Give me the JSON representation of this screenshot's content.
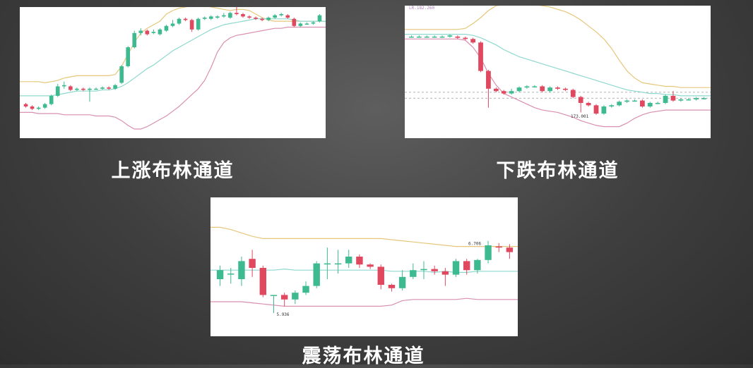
{
  "colors": {
    "up": "#3dba8f",
    "down": "#e0485f",
    "upper_band": "#e6c77a",
    "middle_band": "#8fd8cf",
    "lower_band": "#d98fb0",
    "price_label": "#333333"
  },
  "chart_data": [
    {
      "type": "candlestick",
      "caption": "上涨布林通道",
      "ylim": [
        0,
        100
      ],
      "candles": [
        {
          "o": 24,
          "c": 22,
          "h": 25,
          "l": 21
        },
        {
          "o": 22,
          "c": 20,
          "h": 23,
          "l": 19
        },
        {
          "o": 20,
          "c": 21,
          "h": 22,
          "l": 19
        },
        {
          "o": 21,
          "c": 24,
          "h": 25,
          "l": 20
        },
        {
          "o": 24,
          "c": 31,
          "h": 32,
          "l": 23
        },
        {
          "o": 31,
          "c": 39,
          "h": 41,
          "l": 30
        },
        {
          "o": 39,
          "c": 40,
          "h": 43,
          "l": 37
        },
        {
          "o": 39,
          "c": 36,
          "h": 40,
          "l": 35
        },
        {
          "o": 36,
          "c": 37,
          "h": 38,
          "l": 35
        },
        {
          "o": 37,
          "c": 36,
          "h": 38,
          "l": 35
        },
        {
          "o": 36,
          "c": 37,
          "h": 38,
          "l": 26
        },
        {
          "o": 37,
          "c": 37,
          "h": 38,
          "l": 36
        },
        {
          "o": 37,
          "c": 38,
          "h": 39,
          "l": 36
        },
        {
          "o": 38,
          "c": 37,
          "h": 39,
          "l": 36
        },
        {
          "o": 37,
          "c": 40,
          "h": 41,
          "l": 36
        },
        {
          "o": 42,
          "c": 56,
          "h": 57,
          "l": 41
        },
        {
          "o": 56,
          "c": 72,
          "h": 73,
          "l": 55
        },
        {
          "o": 72,
          "c": 84,
          "h": 86,
          "l": 71
        },
        {
          "o": 84,
          "c": 86,
          "h": 88,
          "l": 82
        },
        {
          "o": 86,
          "c": 83,
          "h": 87,
          "l": 82
        },
        {
          "o": 84,
          "c": 85,
          "h": 87,
          "l": 83
        },
        {
          "o": 83,
          "c": 87,
          "h": 88,
          "l": 82
        },
        {
          "o": 86,
          "c": 90,
          "h": 91,
          "l": 85
        },
        {
          "o": 90,
          "c": 92,
          "h": 95,
          "l": 89
        },
        {
          "o": 92,
          "c": 96,
          "h": 97,
          "l": 91
        },
        {
          "o": 96,
          "c": 95,
          "h": 97,
          "l": 94
        },
        {
          "o": 95,
          "c": 87,
          "h": 96,
          "l": 85
        },
        {
          "o": 87,
          "c": 96,
          "h": 97,
          "l": 86
        },
        {
          "o": 96,
          "c": 97,
          "h": 98,
          "l": 95
        },
        {
          "o": 96,
          "c": 98,
          "h": 99,
          "l": 95
        },
        {
          "o": 97,
          "c": 98,
          "h": 99,
          "l": 96
        },
        {
          "o": 98,
          "c": 99,
          "h": 101,
          "l": 97
        },
        {
          "o": 97,
          "c": 101,
          "h": 102,
          "l": 96
        },
        {
          "o": 101,
          "c": 100,
          "h": 106,
          "l": 99
        },
        {
          "o": 100,
          "c": 98,
          "h": 101,
          "l": 97
        },
        {
          "o": 98,
          "c": 97,
          "h": 99,
          "l": 96
        },
        {
          "o": 97,
          "c": 96,
          "h": 98,
          "l": 95
        },
        {
          "o": 96,
          "c": 95,
          "h": 97,
          "l": 94
        },
        {
          "o": 95,
          "c": 97,
          "h": 98,
          "l": 94
        },
        {
          "o": 97,
          "c": 99,
          "h": 100,
          "l": 96
        },
        {
          "o": 99,
          "c": 100,
          "h": 101,
          "l": 98
        },
        {
          "o": 99,
          "c": 97,
          "h": 100,
          "l": 96
        },
        {
          "o": 96,
          "c": 90,
          "h": 97,
          "l": 89
        },
        {
          "o": 90,
          "c": 92,
          "h": 93,
          "l": 89
        },
        {
          "o": 92,
          "c": 92,
          "h": 93,
          "l": 91
        },
        {
          "o": 92,
          "c": 93,
          "h": 94,
          "l": 91
        },
        {
          "o": 94,
          "c": 99,
          "h": 100,
          "l": 93
        }
      ],
      "upper": [
        43,
        43,
        43,
        42,
        43,
        44,
        46,
        47,
        48,
        48,
        48,
        48,
        48,
        48,
        49,
        56,
        66,
        76,
        84,
        88,
        91,
        94,
        100,
        103,
        105,
        106,
        107,
        107,
        107,
        106,
        105,
        104,
        103,
        104,
        104,
        103,
        100,
        97,
        95,
        94,
        94,
        94,
        94,
        94,
        94,
        94,
        94
      ],
      "middle": [
        31,
        31,
        31,
        31,
        31,
        32,
        33,
        34,
        35,
        35,
        35,
        35,
        36,
        36,
        37,
        39,
        42,
        46,
        50,
        54,
        57,
        61,
        65,
        69,
        72,
        75,
        78,
        81,
        84,
        87,
        89,
        91,
        92,
        93,
        94,
        95,
        96,
        96,
        96,
        96,
        96,
        96,
        95,
        94,
        94,
        94,
        94
      ],
      "lower": [
        17,
        17,
        16,
        16,
        16,
        16,
        15,
        15,
        15,
        15,
        15,
        14,
        14,
        14,
        13,
        10,
        6,
        3,
        3,
        5,
        8,
        11,
        14,
        18,
        22,
        27,
        32,
        37,
        44,
        55,
        68,
        76,
        80,
        82,
        83,
        84,
        85,
        86,
        87,
        88,
        88,
        89,
        89,
        89,
        89,
        89,
        89
      ]
    },
    {
      "type": "candlestick",
      "caption": "下跌布林通道",
      "ylim": [
        0,
        100
      ],
      "price_label": "173.001",
      "top_label": "LR.182.260",
      "ref_lines": [
        34,
        29
      ],
      "candles": [
        {
          "o": 81,
          "c": 81,
          "h": 82,
          "l": 80
        },
        {
          "o": 81,
          "c": 81,
          "h": 82,
          "l": 80
        },
        {
          "o": 81,
          "c": 81,
          "h": 82,
          "l": 80
        },
        {
          "o": 81,
          "c": 81,
          "h": 82,
          "l": 80
        },
        {
          "o": 81,
          "c": 81,
          "h": 82,
          "l": 80
        },
        {
          "o": 81,
          "c": 82,
          "h": 83,
          "l": 80
        },
        {
          "o": 81,
          "c": 80,
          "h": 82,
          "l": 79
        },
        {
          "o": 80,
          "c": 79,
          "h": 81,
          "l": 78
        },
        {
          "o": 79,
          "c": 76,
          "h": 80,
          "l": 75
        },
        {
          "o": 76,
          "c": 52,
          "h": 77,
          "l": 51
        },
        {
          "o": 52,
          "c": 37,
          "h": 53,
          "l": 21
        },
        {
          "o": 37,
          "c": 35,
          "h": 38,
          "l": 34
        },
        {
          "o": 35,
          "c": 33,
          "h": 36,
          "l": 32
        },
        {
          "o": 33,
          "c": 35,
          "h": 37,
          "l": 32
        },
        {
          "o": 35,
          "c": 38,
          "h": 39,
          "l": 34
        },
        {
          "o": 38,
          "c": 39,
          "h": 40,
          "l": 37
        },
        {
          "o": 39,
          "c": 39,
          "h": 40,
          "l": 38
        },
        {
          "o": 39,
          "c": 35,
          "h": 40,
          "l": 34
        },
        {
          "o": 35,
          "c": 38,
          "h": 39,
          "l": 34
        },
        {
          "o": 38,
          "c": 37,
          "h": 39,
          "l": 36
        },
        {
          "o": 37,
          "c": 36,
          "h": 38,
          "l": 35
        },
        {
          "o": 36,
          "c": 30,
          "h": 37,
          "l": 29
        },
        {
          "o": 30,
          "c": 25,
          "h": 31,
          "l": 17
        },
        {
          "o": 25,
          "c": 23,
          "h": 26,
          "l": 22
        },
        {
          "o": 23,
          "c": 16,
          "h": 24,
          "l": 15
        },
        {
          "o": 16,
          "c": 22,
          "h": 23,
          "l": 15
        },
        {
          "o": 22,
          "c": 23,
          "h": 24,
          "l": 21
        },
        {
          "o": 23,
          "c": 26,
          "h": 27,
          "l": 22
        },
        {
          "o": 26,
          "c": 27,
          "h": 28,
          "l": 25
        },
        {
          "o": 27,
          "c": 27,
          "h": 28,
          "l": 26
        },
        {
          "o": 27,
          "c": 22,
          "h": 28,
          "l": 21
        },
        {
          "o": 22,
          "c": 25,
          "h": 26,
          "l": 21
        },
        {
          "o": 25,
          "c": 25,
          "h": 26,
          "l": 24
        },
        {
          "o": 25,
          "c": 31,
          "h": 32,
          "l": 24
        },
        {
          "o": 31,
          "c": 27,
          "h": 35,
          "l": 26
        },
        {
          "o": 27,
          "c": 28,
          "h": 29,
          "l": 26
        },
        {
          "o": 28,
          "c": 28,
          "h": 29,
          "l": 27
        },
        {
          "o": 28,
          "c": 29,
          "h": 30,
          "l": 27
        },
        {
          "o": 29,
          "c": 29,
          "h": 30,
          "l": 28
        }
      ],
      "upper": [
        87,
        87,
        87,
        87,
        87,
        87,
        87,
        88,
        92,
        97,
        103,
        107,
        108,
        108,
        108,
        108,
        108,
        107,
        106,
        104,
        102,
        99,
        95,
        90,
        85,
        79,
        71,
        61,
        52,
        46,
        42,
        41,
        40,
        39,
        39,
        38,
        38,
        38,
        38
      ],
      "middle": [
        83,
        83,
        83,
        83,
        83,
        83,
        83,
        83,
        82,
        80,
        77,
        74,
        70,
        67,
        64,
        62,
        60,
        58,
        56,
        54,
        52,
        50,
        48,
        46,
        44,
        42,
        40,
        38,
        36,
        35,
        34,
        33,
        33,
        32,
        32,
        31,
        31,
        31,
        31
      ],
      "lower": [
        79,
        79,
        79,
        79,
        79,
        79,
        79,
        78,
        72,
        63,
        50,
        40,
        33,
        30,
        27,
        24,
        21,
        19,
        18,
        17,
        15,
        13,
        10,
        8,
        6,
        5,
        5,
        5,
        8,
        12,
        15,
        17,
        18,
        19,
        19,
        19,
        19,
        19,
        19
      ]
    },
    {
      "type": "candlestick",
      "caption": "震荡布林通道",
      "ylim": [
        0,
        100
      ],
      "price_label": "5.936",
      "high_label": "6.706",
      "candles": [
        {
          "o": 40,
          "c": 48,
          "h": 52,
          "l": 34
        },
        {
          "o": 45,
          "c": 45,
          "h": 50,
          "l": 36
        },
        {
          "o": 40,
          "c": 56,
          "h": 60,
          "l": 34
        },
        {
          "o": 58,
          "c": 50,
          "h": 66,
          "l": 42
        },
        {
          "o": 50,
          "c": 26,
          "h": 52,
          "l": 24
        },
        {
          "o": 26,
          "c": 26,
          "h": 26,
          "l": 10
        },
        {
          "o": 26,
          "c": 22,
          "h": 28,
          "l": 16
        },
        {
          "o": 22,
          "c": 28,
          "h": 30,
          "l": 18
        },
        {
          "o": 28,
          "c": 34,
          "h": 38,
          "l": 26
        },
        {
          "o": 34,
          "c": 54,
          "h": 56,
          "l": 32
        },
        {
          "o": 54,
          "c": 54,
          "h": 68,
          "l": 40
        },
        {
          "o": 54,
          "c": 54,
          "h": 66,
          "l": 45
        },
        {
          "o": 54,
          "c": 60,
          "h": 66,
          "l": 50
        },
        {
          "o": 60,
          "c": 53,
          "h": 62,
          "l": 50
        },
        {
          "o": 53,
          "c": 51,
          "h": 54,
          "l": 49
        },
        {
          "o": 51,
          "c": 35,
          "h": 53,
          "l": 31
        },
        {
          "o": 35,
          "c": 32,
          "h": 36,
          "l": 29
        },
        {
          "o": 32,
          "c": 42,
          "h": 48,
          "l": 30
        },
        {
          "o": 42,
          "c": 48,
          "h": 54,
          "l": 40
        },
        {
          "o": 48,
          "c": 49,
          "h": 56,
          "l": 40
        },
        {
          "o": 49,
          "c": 47,
          "h": 52,
          "l": 44
        },
        {
          "o": 47,
          "c": 44,
          "h": 50,
          "l": 34
        },
        {
          "o": 44,
          "c": 56,
          "h": 58,
          "l": 42
        },
        {
          "o": 56,
          "c": 48,
          "h": 58,
          "l": 44
        },
        {
          "o": 48,
          "c": 57,
          "h": 58,
          "l": 45
        },
        {
          "o": 57,
          "c": 70,
          "h": 74,
          "l": 54
        },
        {
          "o": 69,
          "c": 68,
          "h": 72,
          "l": 64
        },
        {
          "o": 68,
          "c": 64,
          "h": 71,
          "l": 58
        }
      ],
      "upper": [
        86,
        84,
        81,
        78,
        76,
        76,
        76,
        76,
        76,
        76,
        76,
        76,
        76,
        76,
        76,
        76,
        75,
        74,
        73,
        72,
        71,
        70,
        69,
        69,
        69,
        69,
        69,
        69
      ],
      "middle": [
        48,
        48,
        48,
        48,
        48,
        48,
        49,
        48,
        48,
        48,
        48,
        48,
        48,
        48,
        48,
        48,
        47,
        47,
        47,
        47,
        46,
        47,
        46,
        46,
        47,
        47,
        47,
        47
      ],
      "lower": [
        20,
        20,
        20,
        19,
        18,
        17,
        16,
        16,
        16,
        16,
        16,
        16,
        16,
        16,
        16,
        16,
        17,
        21,
        22,
        22,
        22,
        22,
        22,
        23,
        22,
        22,
        22,
        22
      ]
    }
  ]
}
